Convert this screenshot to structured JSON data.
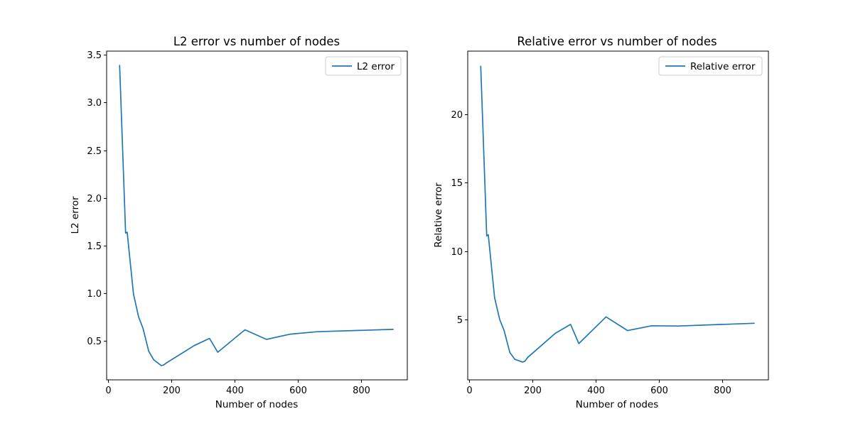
{
  "chart_data": [
    {
      "type": "line",
      "title": "L2 error vs number of nodes",
      "xlabel": "Number of nodes",
      "ylabel": "L2 error",
      "xlim": [
        -5,
        945
      ],
      "ylim": [
        0.09,
        3.54
      ],
      "xticks": [
        0,
        200,
        400,
        600,
        800
      ],
      "yticks": [
        0.5,
        1.0,
        1.5,
        2.0,
        2.5,
        3.0,
        3.5
      ],
      "ytick_labels": [
        "0.5",
        "1.0",
        "1.5",
        "2.0",
        "2.5",
        "3.0",
        "3.5"
      ],
      "grid": false,
      "legend_position": "top-right",
      "color": "#1f77b4",
      "series": [
        {
          "name": "L2 error",
          "x": [
            36,
            55,
            60,
            80,
            96,
            110,
            128,
            144,
            168,
            175,
            185,
            272,
            320,
            346,
            432,
            500,
            576,
            660,
            900
          ],
          "y": [
            3.39,
            1.63,
            1.64,
            0.99,
            0.75,
            0.63,
            0.39,
            0.3,
            0.24,
            0.245,
            0.27,
            0.45,
            0.525,
            0.38,
            0.615,
            0.515,
            0.57,
            0.595,
            0.62
          ]
        }
      ]
    },
    {
      "type": "line",
      "title": "Relative error vs number of nodes",
      "xlabel": "Number of nodes",
      "ylabel": "Relative error",
      "xlim": [
        -5,
        945
      ],
      "ylim": [
        0.6,
        24.6
      ],
      "xticks": [
        0,
        200,
        400,
        600,
        800
      ],
      "yticks": [
        5,
        10,
        15,
        20
      ],
      "ytick_labels": [
        "5",
        "10",
        "15",
        "20"
      ],
      "grid": false,
      "legend_position": "top-right",
      "color": "#1f77b4",
      "series": [
        {
          "name": "Relative error",
          "x": [
            36,
            55,
            60,
            80,
            96,
            110,
            128,
            144,
            168,
            175,
            185,
            272,
            320,
            346,
            432,
            500,
            576,
            660,
            900
          ],
          "y": [
            23.5,
            11.1,
            11.2,
            6.6,
            5.0,
            4.2,
            2.6,
            2.1,
            1.9,
            1.95,
            2.25,
            4.0,
            4.65,
            3.25,
            5.2,
            4.2,
            4.55,
            4.53,
            4.73
          ]
        }
      ]
    }
  ]
}
